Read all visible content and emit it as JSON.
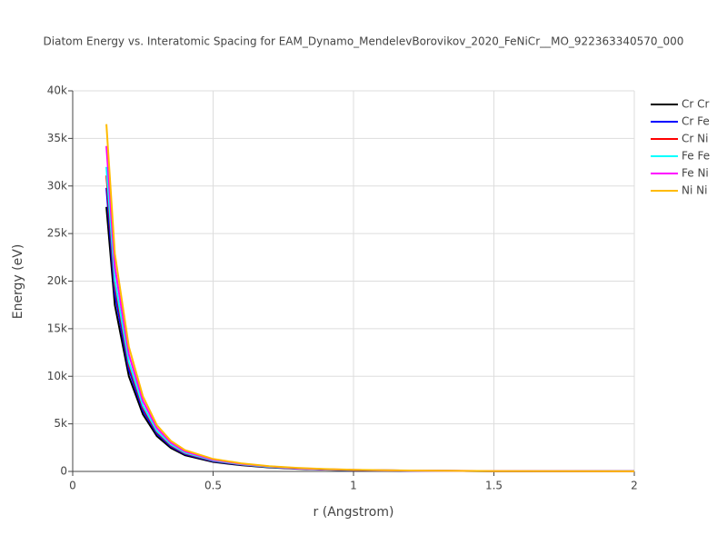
{
  "chart_data": {
    "type": "line",
    "title": "Diatom Energy vs. Interatomic Spacing for EAM_Dynamo_MendelevBorovikov_2020_FeNiCr__MO_922363340570_000",
    "x_label": "r (Angstrom)",
    "y_label": "Energy (eV)",
    "x": [
      0.12,
      0.15,
      0.2,
      0.25,
      0.3,
      0.35,
      0.4,
      0.5,
      0.6,
      0.7,
      0.8,
      0.9,
      1.0,
      1.2,
      1.5,
      2.0
    ],
    "series": [
      {
        "name": "Cr Cr",
        "color": "#000000",
        "values": [
          27800,
          17500,
          10000,
          6000,
          3700,
          2450,
          1700,
          1000,
          650,
          420,
          280,
          190,
          130,
          70,
          30,
          10
        ]
      },
      {
        "name": "Cr Fe",
        "color": "#0000ff",
        "values": [
          29800,
          18700,
          10700,
          6400,
          3960,
          2620,
          1820,
          1070,
          700,
          450,
          300,
          200,
          140,
          75,
          32,
          11
        ]
      },
      {
        "name": "Cr Ni",
        "color": "#ff0000",
        "values": [
          31100,
          19600,
          11200,
          6700,
          4140,
          2740,
          1900,
          1120,
          730,
          470,
          310,
          210,
          150,
          80,
          35,
          11
        ]
      },
      {
        "name": "Fe Fe",
        "color": "#00ffff",
        "values": [
          32000,
          20100,
          11500,
          6900,
          4250,
          2820,
          1960,
          1150,
          750,
          480,
          320,
          220,
          150,
          80,
          35,
          12
        ]
      },
      {
        "name": "Fe Ni",
        "color": "#ff00ff",
        "values": [
          34200,
          21500,
          12300,
          7400,
          4550,
          3010,
          2090,
          1230,
          800,
          520,
          340,
          230,
          160,
          86,
          37,
          12
        ]
      },
      {
        "name": "Ni Ni",
        "color": "#ffbb00",
        "values": [
          36500,
          22900,
          13100,
          7900,
          4850,
          3200,
          2230,
          1310,
          850,
          550,
          370,
          250,
          170,
          92,
          40,
          13
        ]
      }
    ],
    "xlim": [
      0,
      2
    ],
    "xticks": [
      0,
      0.5,
      1,
      1.5,
      2
    ],
    "ylim": [
      0,
      40000
    ],
    "yticks": [
      0,
      {
        "value": 5000,
        "label": "5k"
      },
      {
        "value": 10000,
        "label": "10k"
      },
      {
        "value": 15000,
        "label": "15k"
      },
      {
        "value": 20000,
        "label": "20k"
      },
      {
        "value": 25000,
        "label": "25k"
      },
      {
        "value": 30000,
        "label": "30k"
      },
      {
        "value": 35000,
        "label": "35k"
      },
      {
        "value": 40000,
        "label": "40k"
      }
    ],
    "grid": true,
    "legend": "top-right"
  }
}
